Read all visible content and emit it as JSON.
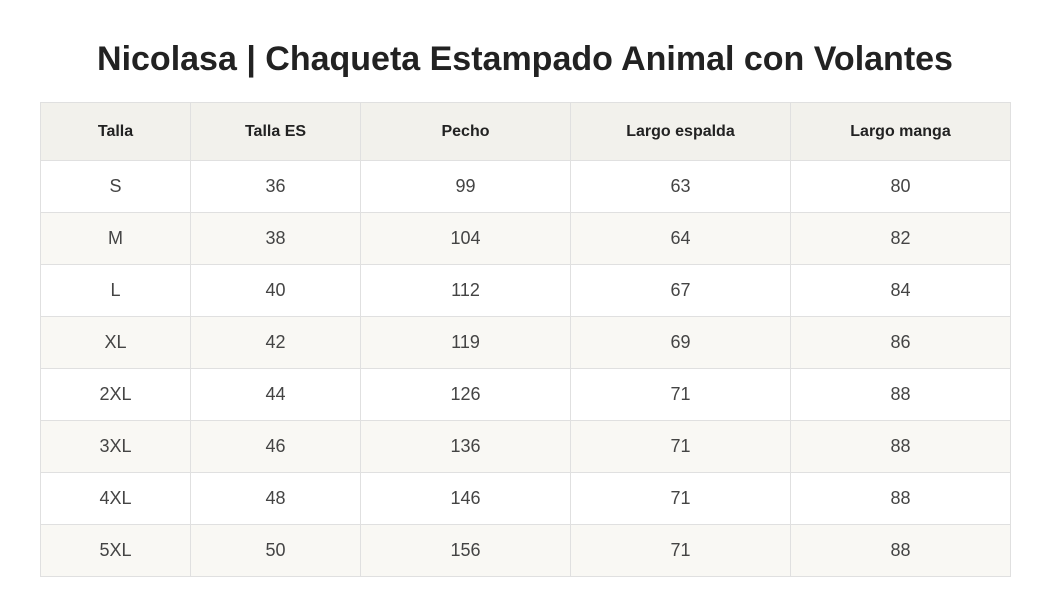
{
  "page": {
    "title": "Nicolasa | Chaqueta Estampado Animal con Volantes"
  },
  "size_table": {
    "headers": [
      "Talla",
      "Talla ES",
      "Pecho",
      "Largo espalda",
      "Largo manga"
    ],
    "rows": [
      [
        "S",
        "36",
        "99",
        "63",
        "80"
      ],
      [
        "M",
        "38",
        "104",
        "64",
        "82"
      ],
      [
        "L",
        "40",
        "112",
        "67",
        "84"
      ],
      [
        "XL",
        "42",
        "119",
        "69",
        "86"
      ],
      [
        "2XL",
        "44",
        "126",
        "71",
        "88"
      ],
      [
        "3XL",
        "46",
        "136",
        "71",
        "88"
      ],
      [
        "4XL",
        "48",
        "146",
        "71",
        "88"
      ],
      [
        "5XL",
        "50",
        "156",
        "71",
        "88"
      ]
    ]
  },
  "colors": {
    "header_bg": "#f2f1ec",
    "stripe_bg": "#f9f8f4",
    "border": "#e0e0e0"
  }
}
